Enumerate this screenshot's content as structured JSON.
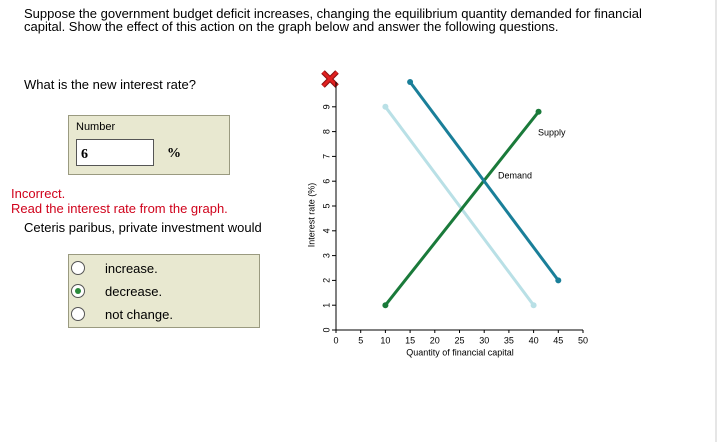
{
  "question": {
    "prompt": "Suppose the government budget deficit increases, changing the equilibrium quantity demanded for financial capital. Show the effect of this action on the graph below and answer the following questions.",
    "sub_question": "What is the new interest rate?",
    "input_label": "Number",
    "input_value": 6,
    "unit": "%",
    "feedback_title": "Incorrect.",
    "feedback_text": "Read the interest rate from the graph.",
    "second_question": "Ceteris paribus, private investment would",
    "options": [
      "increase.",
      "decrease.",
      "not change."
    ],
    "selected_option": 1
  },
  "chart_data": {
    "type": "line",
    "xlabel": "Quantity of financial capital",
    "ylabel": "Interest rate (%)",
    "xlim": [
      0,
      50
    ],
    "xticks": [
      0,
      5,
      10,
      15,
      20,
      25,
      30,
      35,
      40,
      45,
      50
    ],
    "ylim": [
      0,
      10
    ],
    "yticks": [
      0,
      1,
      2,
      3,
      4,
      5,
      6,
      7,
      8,
      9
    ],
    "series": [
      {
        "color": "#b9e0e6",
        "x": [
          10,
          40
        ],
        "values": [
          9,
          1
        ]
      },
      {
        "name": "Supply",
        "color": "#1a7a3a",
        "x": [
          10,
          41
        ],
        "values": [
          1,
          8.8
        ]
      },
      {
        "name": "Demand",
        "color": "#1a7f99",
        "x": [
          15,
          45
        ],
        "values": [
          10,
          2
        ]
      }
    ]
  }
}
